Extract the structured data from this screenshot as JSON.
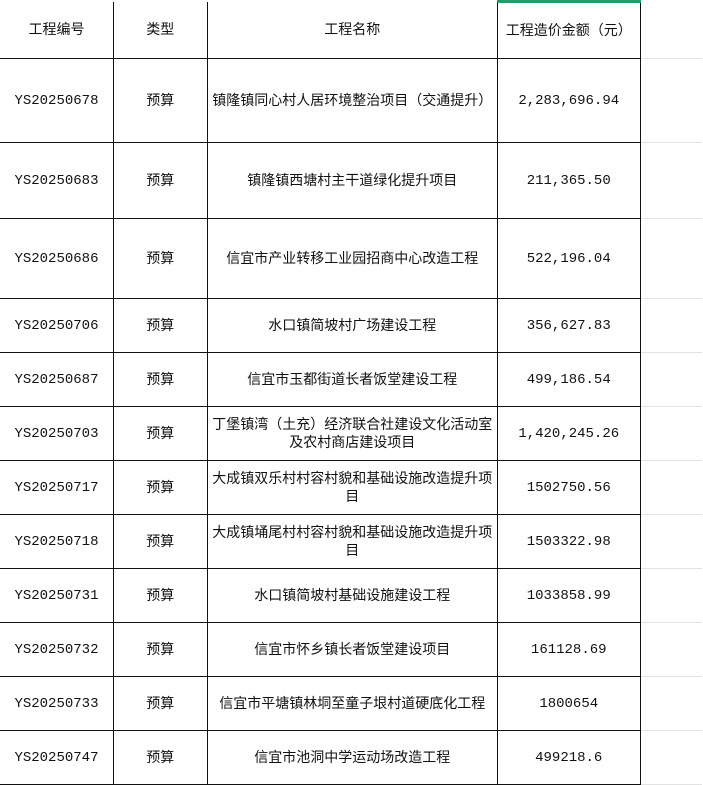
{
  "headers": [
    "工程编号",
    "类型",
    "工程名称",
    "工程造价金额（元）"
  ],
  "accent_color": "#1e9e6a",
  "rows": [
    {
      "code": "YS20250678",
      "type": "预算",
      "name": "镇隆镇同心村人居环境整治项目（交通提升）",
      "amount": "2,283,696.94"
    },
    {
      "code": "YS20250683",
      "type": "预算",
      "name": "镇隆镇西塘村主干道绿化提升项目",
      "amount": "211,365.50"
    },
    {
      "code": "YS20250686",
      "type": "预算",
      "name": "信宜市产业转移工业园招商中心改造工程",
      "amount": "522,196.04"
    },
    {
      "code": "YS20250706",
      "type": "预算",
      "name": "水口镇简坡村广场建设工程",
      "amount": "356,627.83"
    },
    {
      "code": "YS20250687",
      "type": "预算",
      "name": "信宜市玉都街道长者饭堂建设工程",
      "amount": "499,186.54"
    },
    {
      "code": "YS20250703",
      "type": "预算",
      "name": "丁堡镇湾（土充）经济联合社建设文化活动室及农村商店建设项目",
      "amount": "1,420,245.26"
    },
    {
      "code": "YS20250717",
      "type": "预算",
      "name": "大成镇双乐村村容村貌和基础设施改造提升项目",
      "amount": "1502750.56"
    },
    {
      "code": "YS20250718",
      "type": "预算",
      "name": "大成镇埇尾村村容村貌和基础设施改造提升项目",
      "amount": "1503322.98"
    },
    {
      "code": "YS20250731",
      "type": "预算",
      "name": "水口镇简坡村基础设施建设工程",
      "amount": "1033858.99"
    },
    {
      "code": "YS20250732",
      "type": "预算",
      "name": "信宜市怀乡镇长者饭堂建设项目",
      "amount": "161128.69"
    },
    {
      "code": "YS20250733",
      "type": "预算",
      "name": "信宜市平塘镇林垌至童子垠村道硬底化工程",
      "amount": "1800654"
    },
    {
      "code": "YS20250747",
      "type": "预算",
      "name": "信宜市池洞中学运动场改造工程",
      "amount": "499218.6"
    }
  ]
}
